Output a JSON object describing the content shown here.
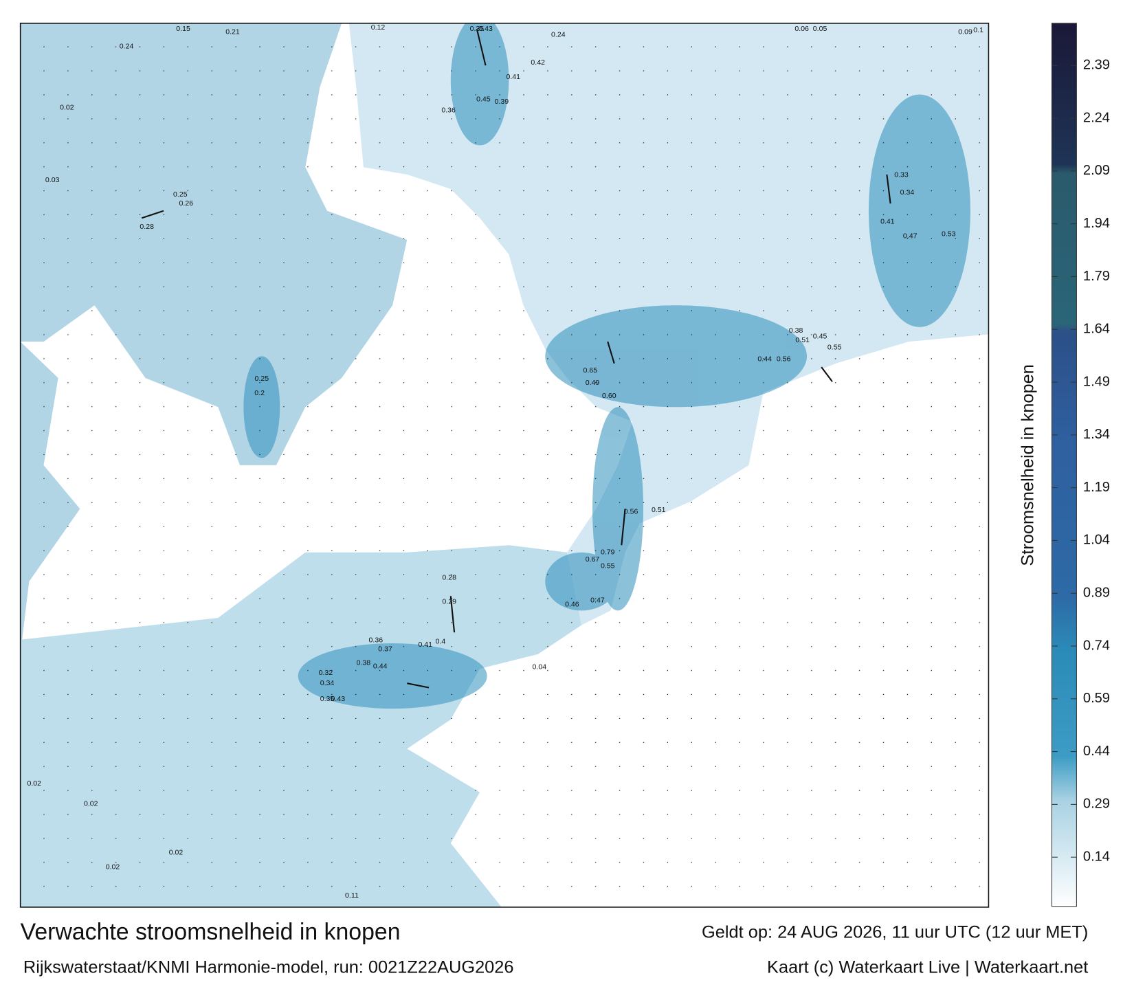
{
  "title": "Verwachte stroomsnelheid in knopen",
  "valid_time": "Geldt op: 24 AUG 2026, 11 uur UTC (12 uur MET)",
  "model": "Rijkswaterstaat/KNMI Harmonie-model, run: 0021Z22AUG2026",
  "credit": "Kaart (c) Waterkaart Live | Waterkaart.net",
  "colorbar": {
    "label": "Stroomsnelheid in knopen",
    "lim": [
      0,
      2.51
    ],
    "ticks": [
      0.14,
      0.29,
      0.44,
      0.59,
      0.74,
      0.89,
      1.04,
      1.19,
      1.34,
      1.49,
      1.64,
      1.79,
      1.94,
      2.09,
      2.24,
      2.39
    ]
  },
  "map_labels": [
    "0.35",
    "0.43",
    "0.24",
    "0.41",
    "0.42",
    "0.65",
    "0.49",
    "0.60",
    "0.79",
    "0.67",
    "0.55",
    "0.47",
    "0.46",
    "0.56",
    "0.51",
    "0.44",
    "0.56",
    "0.51",
    "0.38",
    "0.45",
    "0.55",
    "0.41",
    "0.47",
    "0.53",
    "0.33",
    "0.34",
    "0.36",
    "0.45",
    "0.39",
    "0.44",
    "0.38",
    "0.37",
    "0.36",
    "0.41",
    "0.4",
    "0.32",
    "0.34",
    "0.35",
    "0.43",
    "0.28",
    "0.29",
    "0.28",
    "0.25",
    "0.26",
    "0.2",
    "0.25",
    "0.24",
    "0.15",
    "0.21",
    "0.12",
    "0.06",
    "0.05",
    "0.09",
    "0.1",
    "0.02",
    "0.03",
    "0.02",
    "0.02",
    "0.02",
    "0.02",
    "0.11",
    "0.04"
  ]
}
